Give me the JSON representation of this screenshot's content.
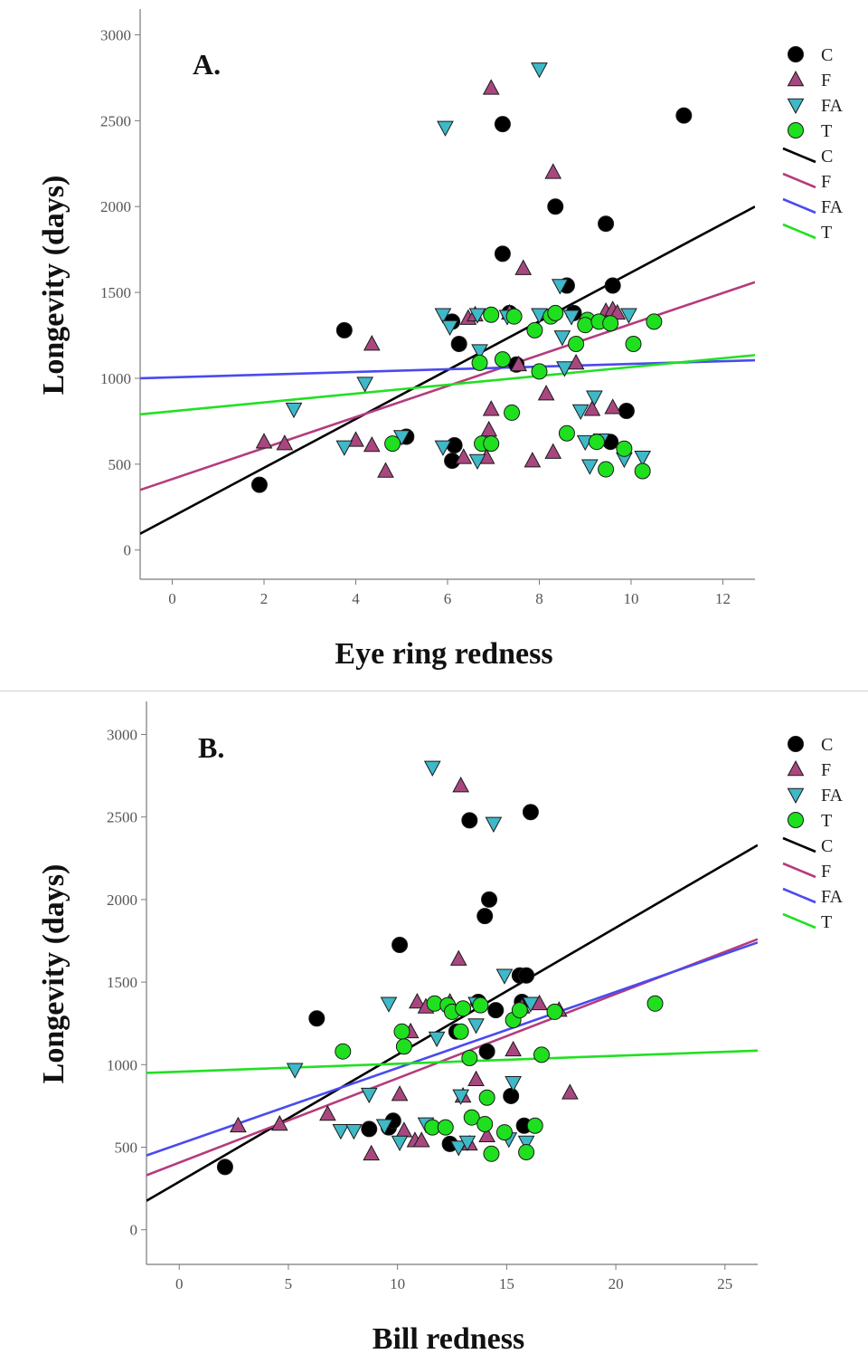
{
  "colors": {
    "C": "#000000",
    "F": "#a8477f",
    "FA": "#3fb8c8",
    "T": "#1fe01f",
    "fit_C": "#000000",
    "fit_F": "#b43c7c",
    "fit_FA": "#4a4af0",
    "fit_T": "#22e022"
  },
  "chart_data": [
    {
      "type": "scatter",
      "panel_label": "A.",
      "xlabel": "Eye ring redness",
      "ylabel": "Longevity (days)",
      "xlim": [
        -0.7,
        12.7
      ],
      "ylim": [
        -170,
        3150
      ],
      "xticks": [
        0,
        2,
        4,
        6,
        8,
        10,
        12
      ],
      "yticks": [
        0,
        500,
        1000,
        1500,
        2000,
        2500,
        3000
      ],
      "grid": false,
      "legend_position": "top-right",
      "legend": {
        "markers": [
          "C",
          "F",
          "FA",
          "T"
        ],
        "lines": [
          "C",
          "F",
          "FA",
          "T"
        ]
      },
      "series": [
        {
          "name": "C",
          "marker": "circle",
          "points": [
            [
              1.9,
              380
            ],
            [
              3.75,
              1280
            ],
            [
              5.1,
              660
            ],
            [
              6.1,
              1330
            ],
            [
              6.1,
              520
            ],
            [
              6.15,
              610
            ],
            [
              6.25,
              1200
            ],
            [
              7.2,
              2480
            ],
            [
              7.2,
              1725
            ],
            [
              7.35,
              1380
            ],
            [
              7.5,
              1080
            ],
            [
              8.35,
              2000
            ],
            [
              8.6,
              1540
            ],
            [
              8.75,
              1380
            ],
            [
              9.45,
              1900
            ],
            [
              9.55,
              630
            ],
            [
              9.6,
              1540
            ],
            [
              9.9,
              810
            ],
            [
              11.15,
              2530
            ]
          ]
        },
        {
          "name": "F",
          "marker": "triangle-up",
          "points": [
            [
              2.0,
              630
            ],
            [
              2.45,
              620
            ],
            [
              4.0,
              640
            ],
            [
              4.35,
              610
            ],
            [
              4.35,
              1200
            ],
            [
              4.65,
              460
            ],
            [
              6.35,
              540
            ],
            [
              6.45,
              1350
            ],
            [
              6.6,
              1370
            ],
            [
              6.85,
              540
            ],
            [
              6.9,
              700
            ],
            [
              6.95,
              2690
            ],
            [
              6.95,
              820
            ],
            [
              7.35,
              1380
            ],
            [
              7.55,
              1080
            ],
            [
              7.65,
              1640
            ],
            [
              7.85,
              520
            ],
            [
              8.15,
              910
            ],
            [
              8.3,
              570
            ],
            [
              8.3,
              2200
            ],
            [
              8.8,
              1090
            ],
            [
              9.15,
              820
            ],
            [
              9.6,
              830
            ],
            [
              9.45,
              1390
            ],
            [
              9.6,
              1400
            ],
            [
              9.7,
              1380
            ]
          ]
        },
        {
          "name": "FA",
          "marker": "triangle-down",
          "points": [
            [
              2.65,
              820
            ],
            [
              3.75,
              600
            ],
            [
              4.2,
              970
            ],
            [
              5.0,
              660
            ],
            [
              5.9,
              1370
            ],
            [
              5.9,
              600
            ],
            [
              5.95,
              2460
            ],
            [
              6.05,
              1300
            ],
            [
              6.65,
              1370
            ],
            [
              6.7,
              1160
            ],
            [
              6.65,
              520
            ],
            [
              7.3,
              1360
            ],
            [
              8.0,
              2800
            ],
            [
              8.0,
              1370
            ],
            [
              8.45,
              1540
            ],
            [
              8.5,
              1240
            ],
            [
              8.55,
              1060
            ],
            [
              8.7,
              1360
            ],
            [
              8.9,
              810
            ],
            [
              9.0,
              630
            ],
            [
              9.1,
              490
            ],
            [
              9.2,
              890
            ],
            [
              9.35,
              640
            ],
            [
              9.85,
              530
            ],
            [
              9.95,
              1370
            ],
            [
              10.25,
              540
            ]
          ]
        },
        {
          "name": "T",
          "marker": "circle",
          "points": [
            [
              4.8,
              620
            ],
            [
              6.7,
              1090
            ],
            [
              6.75,
              620
            ],
            [
              6.95,
              1370
            ],
            [
              6.95,
              620
            ],
            [
              7.2,
              1110
            ],
            [
              7.4,
              800
            ],
            [
              7.45,
              1360
            ],
            [
              7.9,
              1280
            ],
            [
              8.0,
              1040
            ],
            [
              8.25,
              1360
            ],
            [
              8.35,
              1380
            ],
            [
              8.6,
              680
            ],
            [
              8.8,
              1200
            ],
            [
              9.05,
              1340
            ],
            [
              9.0,
              1310
            ],
            [
              9.25,
              630
            ],
            [
              9.3,
              1330
            ],
            [
              9.45,
              470
            ],
            [
              9.55,
              1320
            ],
            [
              9.85,
              590
            ],
            [
              10.05,
              1200
            ],
            [
              10.25,
              460
            ],
            [
              10.5,
              1330
            ]
          ]
        }
      ],
      "fit_lines": [
        {
          "name": "C",
          "x": [
            -0.7,
            12.7
          ],
          "y": [
            95,
            2000
          ]
        },
        {
          "name": "F",
          "x": [
            -0.7,
            12.7
          ],
          "y": [
            350,
            1560
          ]
        },
        {
          "name": "FA",
          "x": [
            -0.7,
            12.7
          ],
          "y": [
            1000,
            1105
          ]
        },
        {
          "name": "T",
          "x": [
            -0.7,
            12.7
          ],
          "y": [
            790,
            1135
          ]
        }
      ]
    },
    {
      "type": "scatter",
      "panel_label": "B.",
      "xlabel": "Bill redness",
      "ylabel": "Longevity (days)",
      "xlim": [
        -1.5,
        26.5
      ],
      "ylim": [
        -210,
        3200
      ],
      "xticks": [
        0,
        5,
        10,
        15,
        20,
        25
      ],
      "yticks": [
        0,
        500,
        1000,
        1500,
        2000,
        2500,
        3000
      ],
      "grid": false,
      "legend_position": "top-right",
      "legend": {
        "markers": [
          "C",
          "F",
          "FA",
          "T"
        ],
        "lines": [
          "C",
          "F",
          "FA",
          "T"
        ]
      },
      "series": [
        {
          "name": "C",
          "marker": "circle",
          "points": [
            [
              2.1,
              380
            ],
            [
              6.3,
              1280
            ],
            [
              8.7,
              610
            ],
            [
              9.6,
              620
            ],
            [
              9.8,
              660
            ],
            [
              10.1,
              1725
            ],
            [
              12.4,
              520
            ],
            [
              12.7,
              1200
            ],
            [
              13.3,
              2480
            ],
            [
              13.7,
              1380
            ],
            [
              14.0,
              1900
            ],
            [
              14.1,
              1080
            ],
            [
              14.2,
              2000
            ],
            [
              14.5,
              1330
            ],
            [
              15.2,
              810
            ],
            [
              15.6,
              1540
            ],
            [
              15.7,
              1380
            ],
            [
              15.8,
              630
            ],
            [
              15.9,
              1540
            ],
            [
              16.1,
              2530
            ]
          ]
        },
        {
          "name": "F",
          "marker": "triangle-up",
          "points": [
            [
              2.7,
              630
            ],
            [
              4.6,
              640
            ],
            [
              6.8,
              700
            ],
            [
              8.8,
              460
            ],
            [
              10.1,
              820
            ],
            [
              10.3,
              600
            ],
            [
              10.6,
              1200
            ],
            [
              10.8,
              540
            ],
            [
              10.9,
              1380
            ],
            [
              11.1,
              540
            ],
            [
              11.3,
              1350
            ],
            [
              12.4,
              1380
            ],
            [
              12.8,
              1640
            ],
            [
              12.9,
              2690
            ],
            [
              13.0,
              810
            ],
            [
              13.3,
              520
            ],
            [
              13.6,
              910
            ],
            [
              14.1,
              570
            ],
            [
              15.3,
              1090
            ],
            [
              15.7,
              1350
            ],
            [
              16.5,
              1370
            ],
            [
              17.4,
              1330
            ],
            [
              17.9,
              830
            ]
          ]
        },
        {
          "name": "FA",
          "marker": "triangle-down",
          "points": [
            [
              5.3,
              970
            ],
            [
              7.4,
              600
            ],
            [
              8.0,
              600
            ],
            [
              8.7,
              820
            ],
            [
              9.4,
              630
            ],
            [
              9.6,
              1370
            ],
            [
              10.1,
              530
            ],
            [
              11.3,
              640
            ],
            [
              11.6,
              2800
            ],
            [
              11.8,
              1160
            ],
            [
              12.8,
              500
            ],
            [
              12.9,
              810
            ],
            [
              13.2,
              530
            ],
            [
              13.6,
              1240
            ],
            [
              13.6,
              1370
            ],
            [
              14.4,
              2460
            ],
            [
              14.9,
              1540
            ],
            [
              15.1,
              550
            ],
            [
              15.3,
              890
            ],
            [
              15.9,
              530
            ],
            [
              16.1,
              1370
            ]
          ]
        },
        {
          "name": "T",
          "marker": "circle",
          "points": [
            [
              7.5,
              1080
            ],
            [
              10.2,
              1200
            ],
            [
              10.3,
              1110
            ],
            [
              11.6,
              620
            ],
            [
              11.7,
              1370
            ],
            [
              12.2,
              620
            ],
            [
              12.3,
              1360
            ],
            [
              12.5,
              1320
            ],
            [
              12.9,
              1200
            ],
            [
              13.0,
              1340
            ],
            [
              13.3,
              1040
            ],
            [
              13.4,
              680
            ],
            [
              13.8,
              1360
            ],
            [
              14.0,
              640
            ],
            [
              14.1,
              800
            ],
            [
              14.3,
              460
            ],
            [
              14.9,
              590
            ],
            [
              15.3,
              1270
            ],
            [
              15.6,
              1330
            ],
            [
              15.9,
              470
            ],
            [
              16.3,
              630
            ],
            [
              16.6,
              1060
            ],
            [
              17.2,
              1320
            ],
            [
              21.8,
              1370
            ]
          ]
        }
      ],
      "fit_lines": [
        {
          "name": "C",
          "x": [
            -1.5,
            26.5
          ],
          "y": [
            175,
            2330
          ]
        },
        {
          "name": "F",
          "x": [
            -1.5,
            26.5
          ],
          "y": [
            330,
            1760
          ]
        },
        {
          "name": "FA",
          "x": [
            -1.5,
            26.5
          ],
          "y": [
            450,
            1740
          ]
        },
        {
          "name": "T",
          "x": [
            -1.5,
            26.5
          ],
          "y": [
            950,
            1085
          ]
        }
      ]
    }
  ]
}
